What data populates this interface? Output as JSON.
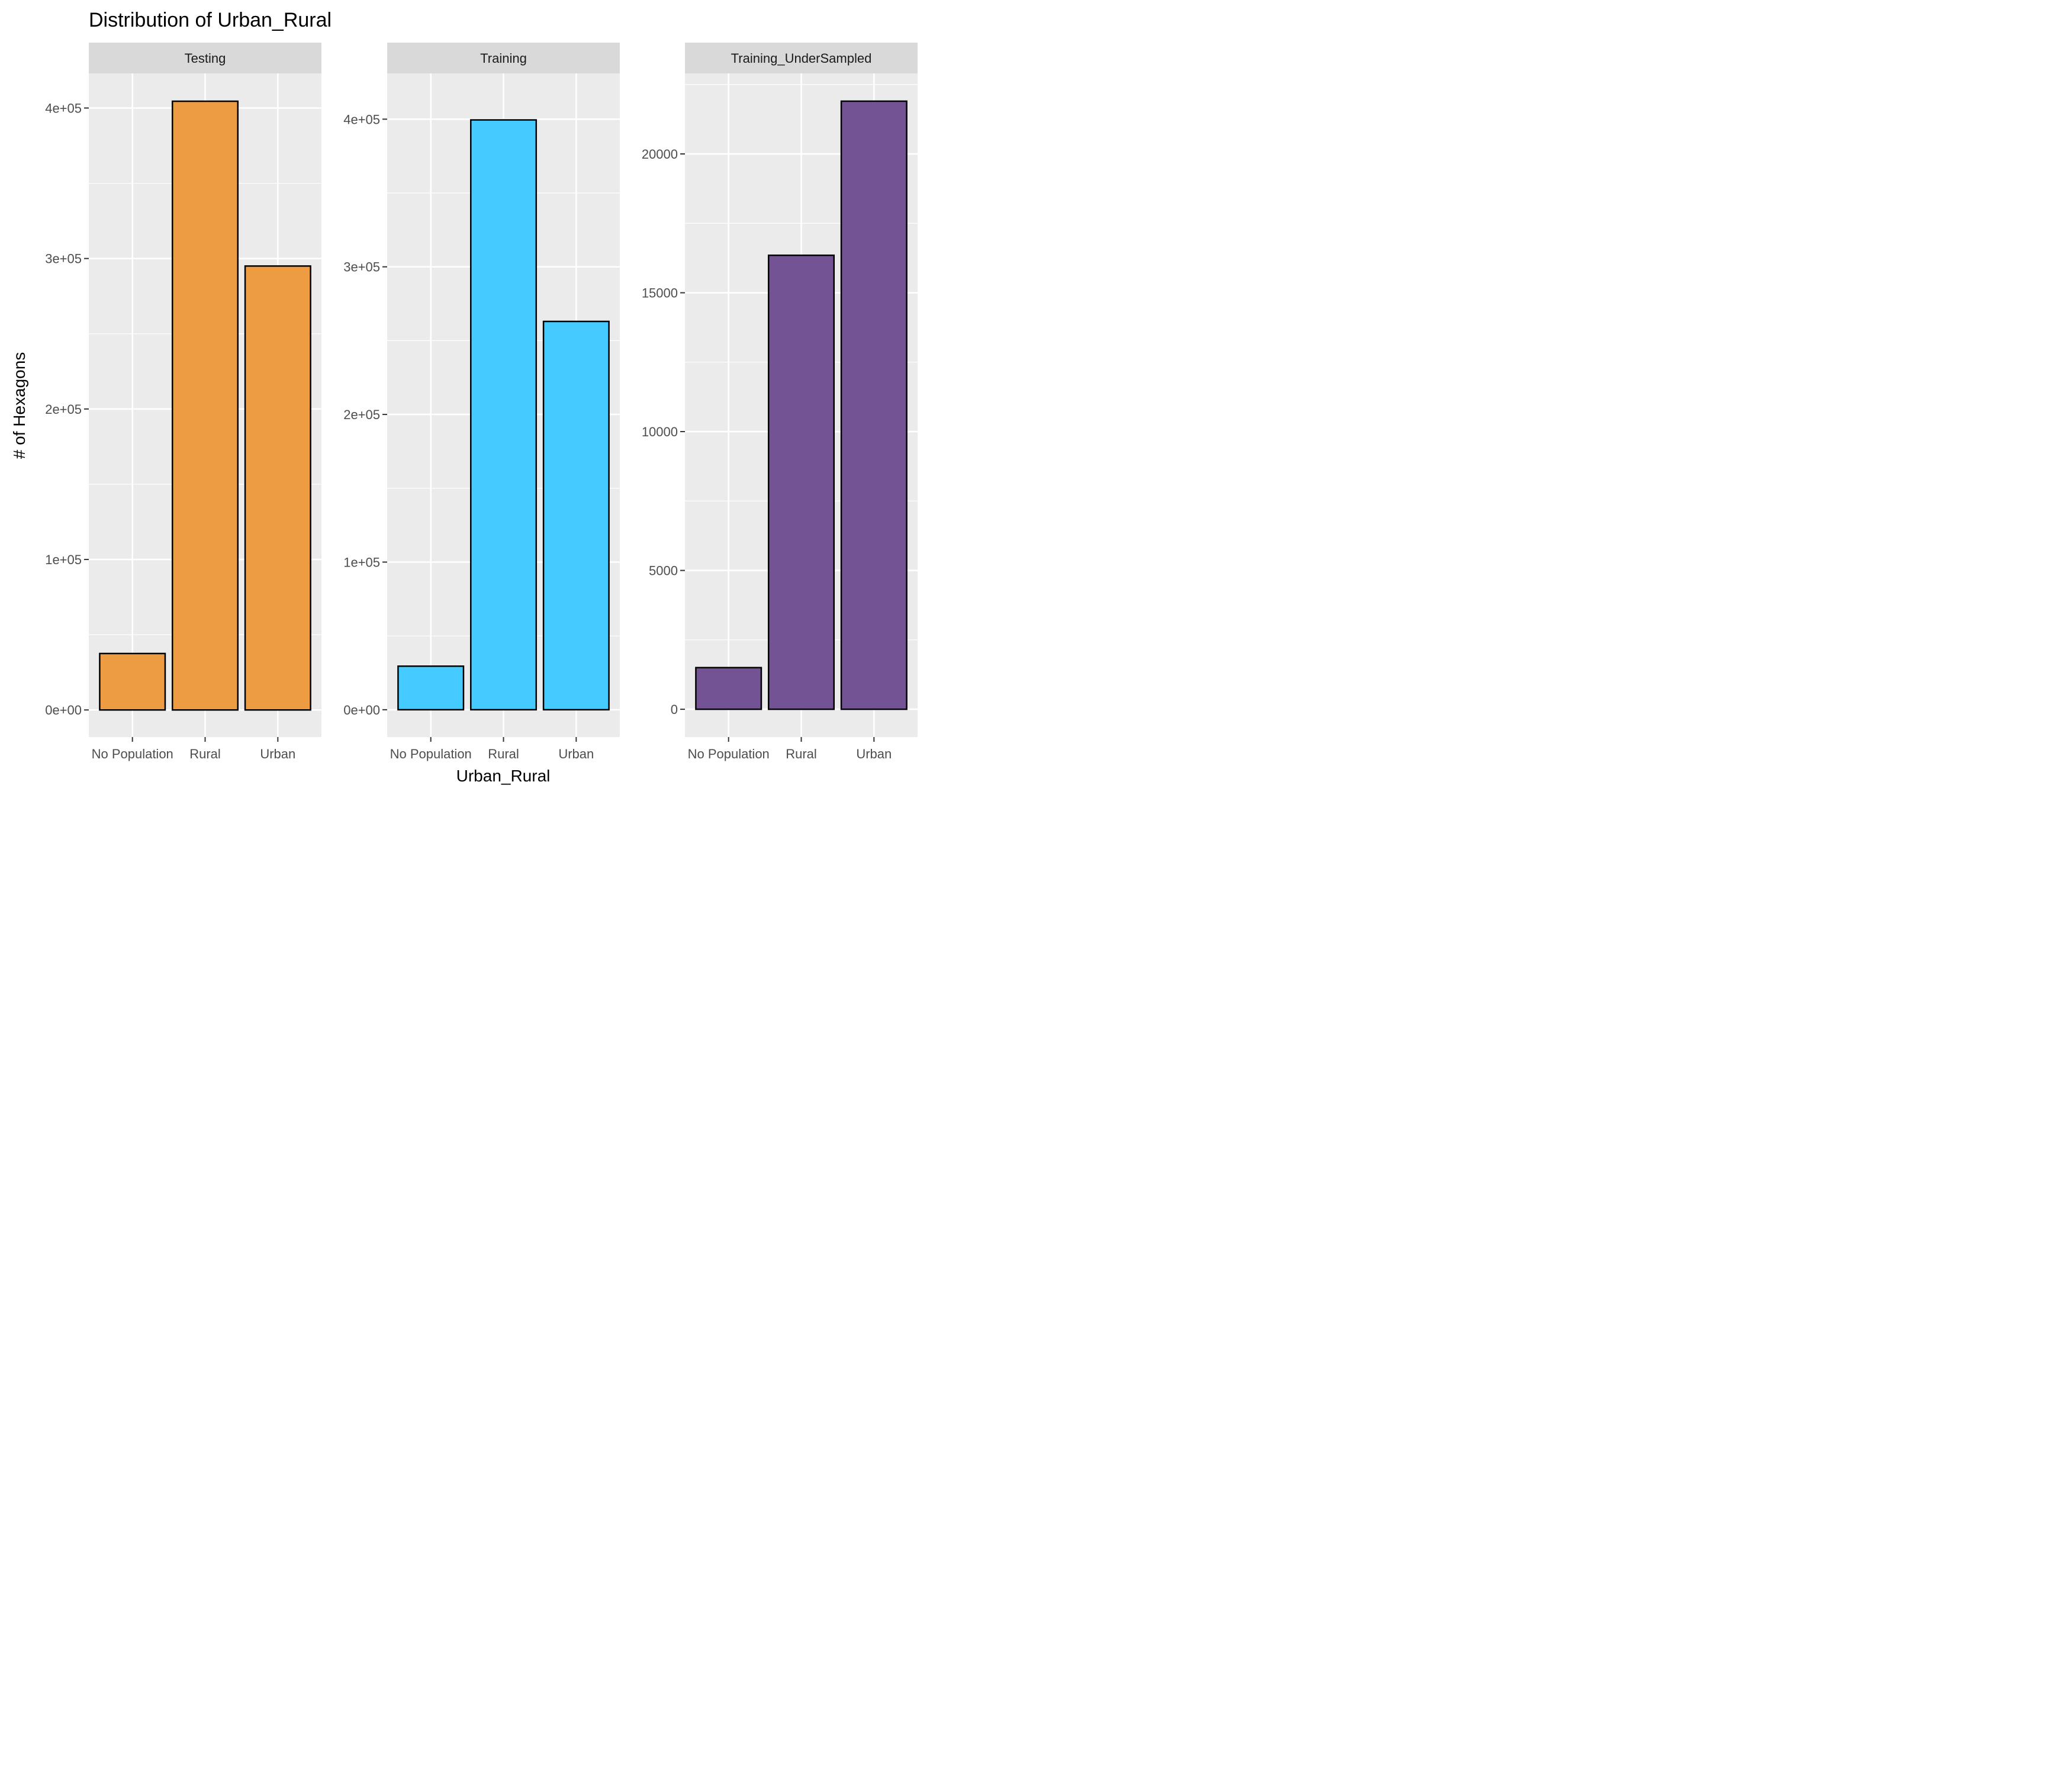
{
  "title": "Distribution of Urban_Rural",
  "xlabel": "Urban_Rural",
  "ylabel": "# of Hexagons",
  "chart_data": {
    "type": "bar",
    "title": "Distribution of Urban_Rural",
    "xlabel": "Urban_Rural",
    "ylabel": "# of Hexagons",
    "categories": [
      "No Population",
      "Rural",
      "Urban"
    ],
    "grid": true,
    "legend": "none",
    "panels": [
      {
        "name": "Testing",
        "color": "#ED9C42",
        "values": [
          37500,
          404500,
          295000
        ],
        "ylim": [
          -18000,
          423000
        ],
        "yticks": [
          0,
          100000,
          200000,
          300000,
          400000
        ],
        "ytick_labels": [
          "0e+00",
          "1e+05",
          "2e+05",
          "3e+05",
          "4e+05"
        ]
      },
      {
        "name": "Training",
        "color": "#45CBFF",
        "values": [
          29500,
          399500,
          263000
        ],
        "ylim": [
          -18500,
          431000
        ],
        "yticks": [
          0,
          100000,
          200000,
          300000,
          400000
        ],
        "ytick_labels": [
          "0e+00",
          "1e+05",
          "2e+05",
          "3e+05",
          "4e+05"
        ]
      },
      {
        "name": "Training_UnderSampled",
        "color": "#735394",
        "values": [
          1500,
          16350,
          21900
        ],
        "ylim": [
          -1000,
          22900
        ],
        "yticks": [
          0,
          5000,
          10000,
          15000,
          20000
        ],
        "ytick_labels": [
          "0",
          "5000",
          "10000",
          "15000",
          "20000"
        ]
      }
    ]
  }
}
